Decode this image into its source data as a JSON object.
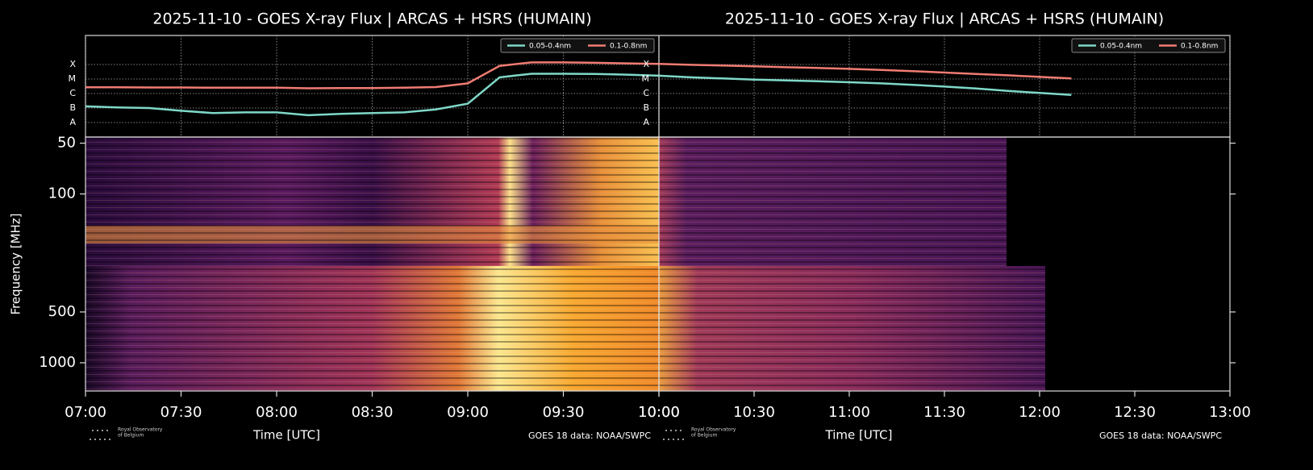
{
  "chart_data": [
    {
      "type": "line",
      "title": "2025-11-10 - GOES X-ray Flux | ARCAS + HSRS (HUMAIN)",
      "xlabel": "Time [UTC]",
      "credit": "GOES 18 data: NOAA/SWPC",
      "logo": [
        "Royal Observatory",
        "of Belgium"
      ],
      "x": [
        "07:00",
        "07:10",
        "07:20",
        "07:30",
        "07:40",
        "07:50",
        "08:00",
        "08:10",
        "08:20",
        "08:30",
        "08:40",
        "08:50",
        "09:00",
        "09:10",
        "09:20",
        "09:30",
        "09:40",
        "09:50",
        "10:00"
      ],
      "series": [
        {
          "name": "0.05-0.4nm",
          "color": "#7fd8c8",
          "values": [
            1.3e-07,
            1.1e-07,
            1e-07,
            6.5e-08,
            4.5e-08,
            5e-08,
            5e-08,
            3.2e-08,
            4e-08,
            4.5e-08,
            5e-08,
            8e-08,
            2e-07,
            1.3e-05,
            2.3e-05,
            2.3e-05,
            2.2e-05,
            2e-05,
            1.7e-05
          ]
        },
        {
          "name": "0.1-0.8nm",
          "color": "#f07c72",
          "values": [
            2.7e-06,
            2.7e-06,
            2.6e-06,
            2.6e-06,
            2.5e-06,
            2.5e-06,
            2.5e-06,
            2.3e-06,
            2.4e-06,
            2.4e-06,
            2.5e-06,
            2.8e-06,
            5e-06,
            8e-05,
            0.00014,
            0.00014,
            0.00013,
            0.00012,
            0.00011
          ]
        }
      ],
      "xlim": [
        "07:00",
        "10:00"
      ],
      "xticks": [
        "07:00",
        "07:30",
        "08:00",
        "08:30",
        "09:00",
        "09:30",
        "10:00"
      ],
      "ylim": [
        1e-09,
        0.01
      ],
      "log": true,
      "grid": true,
      "legend": "upper right",
      "yticks": [
        {
          "value": 1e-08,
          "label": "A"
        },
        {
          "value": 1e-07,
          "label": "B"
        },
        {
          "value": 1e-06,
          "label": "C"
        },
        {
          "value": 1e-05,
          "label": "M"
        },
        {
          "value": 0.0001,
          "label": "X"
        }
      ]
    },
    {
      "type": "line",
      "title": "2025-11-10 - GOES X-ray Flux | ARCAS + HSRS (HUMAIN)",
      "xlabel": "Time [UTC]",
      "credit": "GOES 18 data: NOAA/SWPC",
      "logo": [
        "Royal Observatory",
        "of Belgium"
      ],
      "x": [
        "10:00",
        "10:10",
        "10:20",
        "10:30",
        "10:40",
        "10:50",
        "11:00",
        "11:10",
        "11:20",
        "11:30",
        "11:40",
        "11:50",
        "12:00",
        "12:10"
      ],
      "series": [
        {
          "name": "0.05-0.4nm",
          "color": "#7fd8c8",
          "values": [
            1.7e-05,
            1.3e-05,
            1.1e-05,
            9e-06,
            8e-06,
            7e-06,
            6e-06,
            5e-06,
            4e-06,
            3e-06,
            2.2e-06,
            1.5e-06,
            1.1e-06,
            8e-07
          ]
        },
        {
          "name": "0.1-0.8nm",
          "color": "#f07c72",
          "values": [
            0.00011,
            9.5e-05,
            8.5e-05,
            7.5e-05,
            6.5e-05,
            5.8e-05,
            5e-05,
            4.2e-05,
            3.5e-05,
            2.8e-05,
            2.2e-05,
            1.8e-05,
            1.4e-05,
            1.1e-05
          ]
        }
      ],
      "xlim": [
        "10:00",
        "13:00"
      ],
      "xticks": [
        "10:00",
        "10:30",
        "11:00",
        "11:30",
        "12:00",
        "12:30",
        "13:00"
      ],
      "ylim": [
        1e-09,
        0.01
      ],
      "log": true,
      "grid": true,
      "legend": "upper right",
      "yticks": [
        {
          "value": 1e-08,
          "label": "A"
        },
        {
          "value": 1e-07,
          "label": "B"
        },
        {
          "value": 1e-06,
          "label": "C"
        },
        {
          "value": 1e-05,
          "label": "M"
        },
        {
          "value": 0.0001,
          "label": "X"
        }
      ]
    },
    {
      "type": "spectrogram",
      "ylabel": "Frequency [MHz]",
      "ylim": [
        46,
        1470
      ],
      "log": true,
      "inverted": true,
      "yticks": [
        50,
        100,
        500,
        1000
      ]
    }
  ]
}
